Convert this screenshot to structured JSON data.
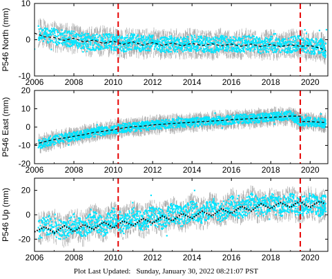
{
  "footer": {
    "label": "Plot Last Updated:",
    "timestamp": "Sunday, January 30, 2022 08:21:07 PST"
  },
  "colors": {
    "data_points": "#00e5ff",
    "error_bars": "#a8a8a8",
    "model_curve": "#000000",
    "event_lines": "#e60000"
  },
  "chart_data": [
    {
      "type": "scatter",
      "ylabel": "P546 North (mm)",
      "xlabel": "",
      "xlim": [
        2006,
        2020.9
      ],
      "ylim": [
        -10,
        10
      ],
      "x_ticks": [
        "2006",
        "2008",
        "2010",
        "2012",
        "2014",
        "2016",
        "2018",
        "2020"
      ],
      "y_ticks": [
        "-10",
        "0",
        "10"
      ],
      "event_lines_x": [
        2010.25,
        2019.5
      ],
      "grid": false,
      "series": [
        {
          "style": "error-bars",
          "x": [
            2006.2,
            2006.8,
            2007.5,
            2008.0,
            2008.5,
            2009.0,
            2009.5,
            2010.0,
            2010.5,
            2011.0,
            2011.5,
            2012.0,
            2012.5,
            2013.0,
            2013.5,
            2014.0,
            2014.5,
            2015.0,
            2015.5,
            2016.0,
            2016.5,
            2017.0,
            2017.5,
            2018.0,
            2018.5,
            2019.0,
            2019.5,
            2020.0,
            2020.5,
            2020.8
          ],
          "y": [
            1.8,
            1.2,
            0.3,
            0.1,
            -0.4,
            -0.8,
            -0.3,
            -0.7,
            -1.3,
            -0.4,
            -1.2,
            -0.8,
            -1.5,
            -1.1,
            -1.4,
            -1.0,
            -1.2,
            -1.5,
            -0.9,
            -1.4,
            -1.3,
            -1.0,
            -1.7,
            -1.2,
            -1.6,
            -1.5,
            -1.0,
            -2.0,
            -1.6,
            -3.0
          ],
          "yerr": 3.5
        },
        {
          "style": "points",
          "x": [
            2006.2,
            2006.8,
            2007.5,
            2008.0,
            2008.5,
            2009.0,
            2009.5,
            2010.0,
            2010.5,
            2011.0,
            2011.5,
            2012.0,
            2012.5,
            2013.0,
            2013.5,
            2014.0,
            2014.5,
            2015.0,
            2015.5,
            2016.0,
            2016.5,
            2017.0,
            2017.5,
            2018.0,
            2018.5,
            2019.0,
            2019.5,
            2020.0,
            2020.5,
            2020.8
          ],
          "y": [
            1.8,
            1.2,
            0.3,
            0.1,
            -0.4,
            -0.8,
            -0.3,
            -0.7,
            -1.3,
            -0.4,
            -1.2,
            -0.8,
            -1.5,
            -1.1,
            -1.4,
            -1.0,
            -1.2,
            -1.5,
            -0.9,
            -1.4,
            -1.3,
            -1.0,
            -1.7,
            -1.2,
            -1.6,
            -1.5,
            -1.0,
            -2.0,
            -1.6,
            -3.0
          ],
          "yerr": 2.2
        },
        {
          "style": "model-dashed",
          "x": [
            2006.0,
            2006.5,
            2007.0,
            2007.5,
            2008.0,
            2008.5,
            2009.0,
            2009.5,
            2010.0,
            2010.5,
            2011.0,
            2011.5,
            2012.0,
            2012.5,
            2013.0,
            2013.5,
            2014.0,
            2014.5,
            2015.0,
            2015.5,
            2016.0,
            2016.5,
            2017.0,
            2017.5,
            2018.0,
            2018.5,
            2019.0,
            2019.5,
            2020.0,
            2020.5,
            2020.8
          ],
          "y": [
            1.8,
            0.8,
            0.6,
            -0.2,
            0.4,
            -0.6,
            -0.1,
            -1.0,
            -0.4,
            -1.3,
            -0.6,
            -1.5,
            -0.8,
            -1.6,
            -0.9,
            -1.7,
            -1.0,
            -1.6,
            -1.1,
            -1.7,
            -1.2,
            -1.8,
            -1.2,
            -1.9,
            -1.3,
            -1.9,
            -1.4,
            -1.8,
            -1.6,
            -2.3,
            -3.0
          ]
        }
      ]
    },
    {
      "type": "scatter",
      "ylabel": "P546 East (mm)",
      "xlabel": "",
      "xlim": [
        2006,
        2020.9
      ],
      "ylim": [
        -20,
        20
      ],
      "x_ticks": [
        "2006",
        "2008",
        "2010",
        "2012",
        "2014",
        "2016",
        "2018",
        "2020"
      ],
      "y_ticks": [
        "-20",
        "-10",
        "0",
        "10",
        "20"
      ],
      "event_lines_x": [
        2010.25,
        2019.5
      ],
      "grid": false,
      "series": [
        {
          "style": "error-bars",
          "x": [
            2006.2,
            2006.8,
            2007.5,
            2008.0,
            2008.5,
            2009.0,
            2009.5,
            2010.0,
            2010.5,
            2011.0,
            2011.5,
            2012.0,
            2012.5,
            2013.0,
            2013.5,
            2014.0,
            2014.5,
            2015.0,
            2015.5,
            2016.0,
            2016.5,
            2017.0,
            2017.5,
            2018.0,
            2018.5,
            2019.0,
            2019.5,
            2020.0,
            2020.5,
            2020.8
          ],
          "y": [
            -9.5,
            -7.5,
            -6.0,
            -5.0,
            -4.0,
            -3.0,
            -2.0,
            -1.5,
            -0.5,
            0.0,
            0.5,
            1.0,
            1.5,
            2.0,
            2.5,
            2.5,
            3.0,
            3.5,
            3.5,
            4.0,
            4.5,
            4.5,
            5.0,
            5.5,
            6.0,
            6.5,
            3.0,
            3.0,
            2.5,
            2.0
          ],
          "yerr": 4.0
        },
        {
          "style": "points",
          "x": [
            2006.2,
            2006.8,
            2007.5,
            2008.0,
            2008.5,
            2009.0,
            2009.5,
            2010.0,
            2010.5,
            2011.0,
            2011.5,
            2012.0,
            2012.5,
            2013.0,
            2013.5,
            2014.0,
            2014.5,
            2015.0,
            2015.5,
            2016.0,
            2016.5,
            2017.0,
            2017.5,
            2018.0,
            2018.5,
            2019.0,
            2019.5,
            2020.0,
            2020.5,
            2020.8
          ],
          "y": [
            -9.5,
            -7.5,
            -6.0,
            -5.0,
            -4.0,
            -3.0,
            -2.0,
            -1.5,
            -0.5,
            0.0,
            0.5,
            1.0,
            1.5,
            2.0,
            2.5,
            2.5,
            3.0,
            3.5,
            3.5,
            4.0,
            4.5,
            4.5,
            5.0,
            5.5,
            6.0,
            6.5,
            3.0,
            3.0,
            2.5,
            2.0
          ],
          "yerr": 2.5
        },
        {
          "style": "model-dashed",
          "x": [
            2006.0,
            2006.5,
            2007.0,
            2007.5,
            2008.0,
            2008.5,
            2009.0,
            2009.5,
            2010.0,
            2010.25,
            2010.5,
            2011.0,
            2011.5,
            2012.0,
            2012.5,
            2013.0,
            2013.5,
            2014.0,
            2014.5,
            2015.0,
            2015.5,
            2016.0,
            2016.5,
            2017.0,
            2017.5,
            2018.0,
            2018.5,
            2019.0,
            2019.5,
            2019.5,
            2020.0,
            2020.5,
            2020.8
          ],
          "y": [
            -9.5,
            -8.0,
            -6.8,
            -6.0,
            -5.0,
            -4.2,
            -3.0,
            -2.3,
            -1.5,
            -1.0,
            -0.5,
            0.2,
            0.5,
            1.2,
            1.5,
            2.0,
            2.3,
            2.6,
            3.0,
            3.3,
            3.6,
            4.0,
            4.3,
            4.6,
            5.0,
            5.3,
            5.6,
            6.0,
            6.0,
            3.0,
            3.0,
            2.6,
            2.5
          ]
        }
      ]
    },
    {
      "type": "scatter",
      "ylabel": "P546 Up (mm)",
      "xlabel": "",
      "xlim": [
        2006,
        2020.9
      ],
      "ylim": [
        -30,
        30
      ],
      "x_ticks": [
        "2006",
        "2008",
        "2010",
        "2012",
        "2014",
        "2016",
        "2018",
        "2020"
      ],
      "y_ticks": [
        "-20",
        "0",
        "20"
      ],
      "event_lines_x": [
        2010.25,
        2019.5
      ],
      "grid": false,
      "series": [
        {
          "style": "error-bars",
          "x": [
            2006.2,
            2006.8,
            2007.5,
            2008.0,
            2008.5,
            2009.0,
            2009.5,
            2010.0,
            2010.5,
            2011.0,
            2011.5,
            2012.0,
            2012.5,
            2013.0,
            2013.5,
            2014.0,
            2014.5,
            2015.0,
            2015.5,
            2016.0,
            2016.5,
            2017.0,
            2017.5,
            2018.0,
            2018.5,
            2019.0,
            2019.5,
            2020.0,
            2020.5,
            2020.8
          ],
          "y": [
            -12.0,
            -8.0,
            -14.0,
            -6.0,
            -12.0,
            -4.0,
            -10.0,
            -2.0,
            -8.0,
            -2.0,
            -6.0,
            0.0,
            -4.0,
            2.0,
            -2.0,
            4.0,
            0.0,
            6.0,
            2.0,
            8.0,
            4.0,
            10.0,
            6.0,
            10.0,
            6.0,
            10.0,
            6.0,
            10.0,
            6.0,
            10.0
          ],
          "yerr": 12.0
        },
        {
          "style": "points",
          "x": [
            2006.2,
            2006.8,
            2007.5,
            2008.0,
            2008.5,
            2009.0,
            2009.5,
            2010.0,
            2010.5,
            2011.0,
            2011.5,
            2012.0,
            2012.5,
            2013.0,
            2013.5,
            2014.0,
            2014.5,
            2015.0,
            2015.5,
            2016.0,
            2016.5,
            2017.0,
            2017.5,
            2018.0,
            2018.5,
            2019.0,
            2019.5,
            2020.0,
            2020.5,
            2020.8
          ],
          "y": [
            -12.0,
            -8.0,
            -14.0,
            -6.0,
            -12.0,
            -4.0,
            -10.0,
            -2.0,
            -8.0,
            -2.0,
            -6.0,
            0.0,
            -4.0,
            2.0,
            -2.0,
            4.0,
            0.0,
            6.0,
            2.0,
            8.0,
            4.0,
            10.0,
            6.0,
            10.0,
            6.0,
            10.0,
            6.0,
            10.0,
            6.0,
            10.0
          ],
          "yerr": 8.0
        },
        {
          "style": "model-dotted",
          "x": [
            2006.0,
            2006.25,
            2006.5,
            2006.75,
            2007.0,
            2007.25,
            2007.5,
            2007.75,
            2008.0,
            2008.25,
            2008.5,
            2008.75,
            2009.0,
            2009.25,
            2009.5,
            2009.75,
            2010.0,
            2010.25,
            2010.5,
            2010.75,
            2011.0,
            2011.25,
            2011.5,
            2011.75,
            2012.0,
            2012.25,
            2012.5,
            2012.75,
            2013.0,
            2013.25,
            2013.5,
            2013.75,
            2014.0,
            2014.25,
            2014.5,
            2014.75,
            2015.0,
            2015.25,
            2015.5,
            2015.75,
            2016.0,
            2016.25,
            2016.5,
            2016.75,
            2017.0,
            2017.25,
            2017.5,
            2017.75,
            2018.0,
            2018.25,
            2018.5,
            2018.75,
            2019.0,
            2019.25,
            2019.5,
            2019.75,
            2020.0,
            2020.25,
            2020.5,
            2020.75
          ],
          "y": [
            -14,
            -12,
            -10,
            -12,
            -15,
            -12,
            -9,
            -11,
            -14,
            -11,
            -8,
            -10,
            -12,
            -9,
            -6,
            -8,
            -11,
            -8,
            -5,
            -7,
            -9,
            -6,
            -3,
            -5,
            -7,
            -4,
            -1,
            -3,
            -5,
            -2,
            1,
            -1,
            -3,
            0,
            3,
            1,
            -1,
            2,
            5,
            3,
            1,
            4,
            7,
            5,
            3,
            6,
            9,
            7,
            5,
            8,
            10,
            8,
            6,
            9,
            11,
            8,
            6,
            9,
            11,
            9
          ]
        }
      ]
    }
  ]
}
